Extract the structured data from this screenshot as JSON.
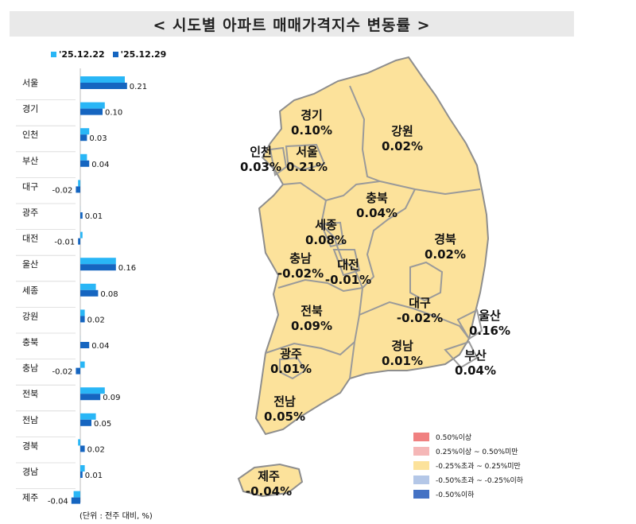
{
  "title": "< 시도별 아파트 매매가격지수 변동률 >",
  "unit_note": "(단위 : 전주 대비, %)",
  "colors": {
    "prev": "#29B6F6",
    "curr": "#1565C0"
  },
  "chart_data": {
    "type": "bar",
    "orientation": "horizontal",
    "categories": [
      "서울",
      "경기",
      "인천",
      "부산",
      "대구",
      "광주",
      "대전",
      "울산",
      "세종",
      "강원",
      "충북",
      "충남",
      "전북",
      "전남",
      "경북",
      "경남",
      "제주"
    ],
    "series": [
      {
        "name": "'25.12.22",
        "values": [
          0.2,
          0.11,
          0.04,
          0.03,
          -0.01,
          0.0,
          0.01,
          0.16,
          0.07,
          0.02,
          0.0,
          0.02,
          0.11,
          0.07,
          -0.01,
          0.02,
          -0.03
        ]
      },
      {
        "name": "'25.12.29",
        "values": [
          0.21,
          0.1,
          0.03,
          0.04,
          -0.02,
          0.01,
          -0.01,
          0.16,
          0.08,
          0.02,
          0.04,
          -0.02,
          0.09,
          0.05,
          0.02,
          0.01,
          -0.04
        ]
      }
    ],
    "value_labels": [
      "0.21",
      "0.10",
      "0.03",
      "0.04",
      "-0.02",
      "0.01",
      "-0.01",
      "0.16",
      "0.08",
      "0.02",
      "0.04",
      "-0.02",
      "0.09",
      "0.05",
      "0.02",
      "0.01",
      "-0.04"
    ],
    "legend": "top-left"
  },
  "map": {
    "regions": [
      {
        "name": "경기",
        "value": "0.10%"
      },
      {
        "name": "강원",
        "value": "0.02%"
      },
      {
        "name": "인천",
        "value": "0.03%"
      },
      {
        "name": "서울",
        "value": "0.21%"
      },
      {
        "name": "충북",
        "value": "0.04%"
      },
      {
        "name": "세종",
        "value": "0.08%"
      },
      {
        "name": "경북",
        "value": "0.02%"
      },
      {
        "name": "충남",
        "value": "-0.02%"
      },
      {
        "name": "대전",
        "value": "-0.01%"
      },
      {
        "name": "대구",
        "value": "-0.02%"
      },
      {
        "name": "울산",
        "value": "0.16%"
      },
      {
        "name": "전북",
        "value": "0.09%"
      },
      {
        "name": "경남",
        "value": "0.01%"
      },
      {
        "name": "부산",
        "value": "0.04%"
      },
      {
        "name": "광주",
        "value": "0.01%"
      },
      {
        "name": "전남",
        "value": "0.05%"
      },
      {
        "name": "제주",
        "value": "-0.04%"
      }
    ],
    "fill_color": "#FCE29B",
    "legend": [
      {
        "label": "0.50%이상",
        "color": "#F08080"
      },
      {
        "label": "0.25%이상 ~ 0.50%미만",
        "color": "#F5B7B7"
      },
      {
        "label": "-0.25%초과 ~ 0.25%미만",
        "color": "#FCE29B"
      },
      {
        "label": "-0.50%초과 ~ -0.25%이하",
        "color": "#B4C7E7"
      },
      {
        "label": "-0.50%이하",
        "color": "#4472C4"
      }
    ]
  }
}
